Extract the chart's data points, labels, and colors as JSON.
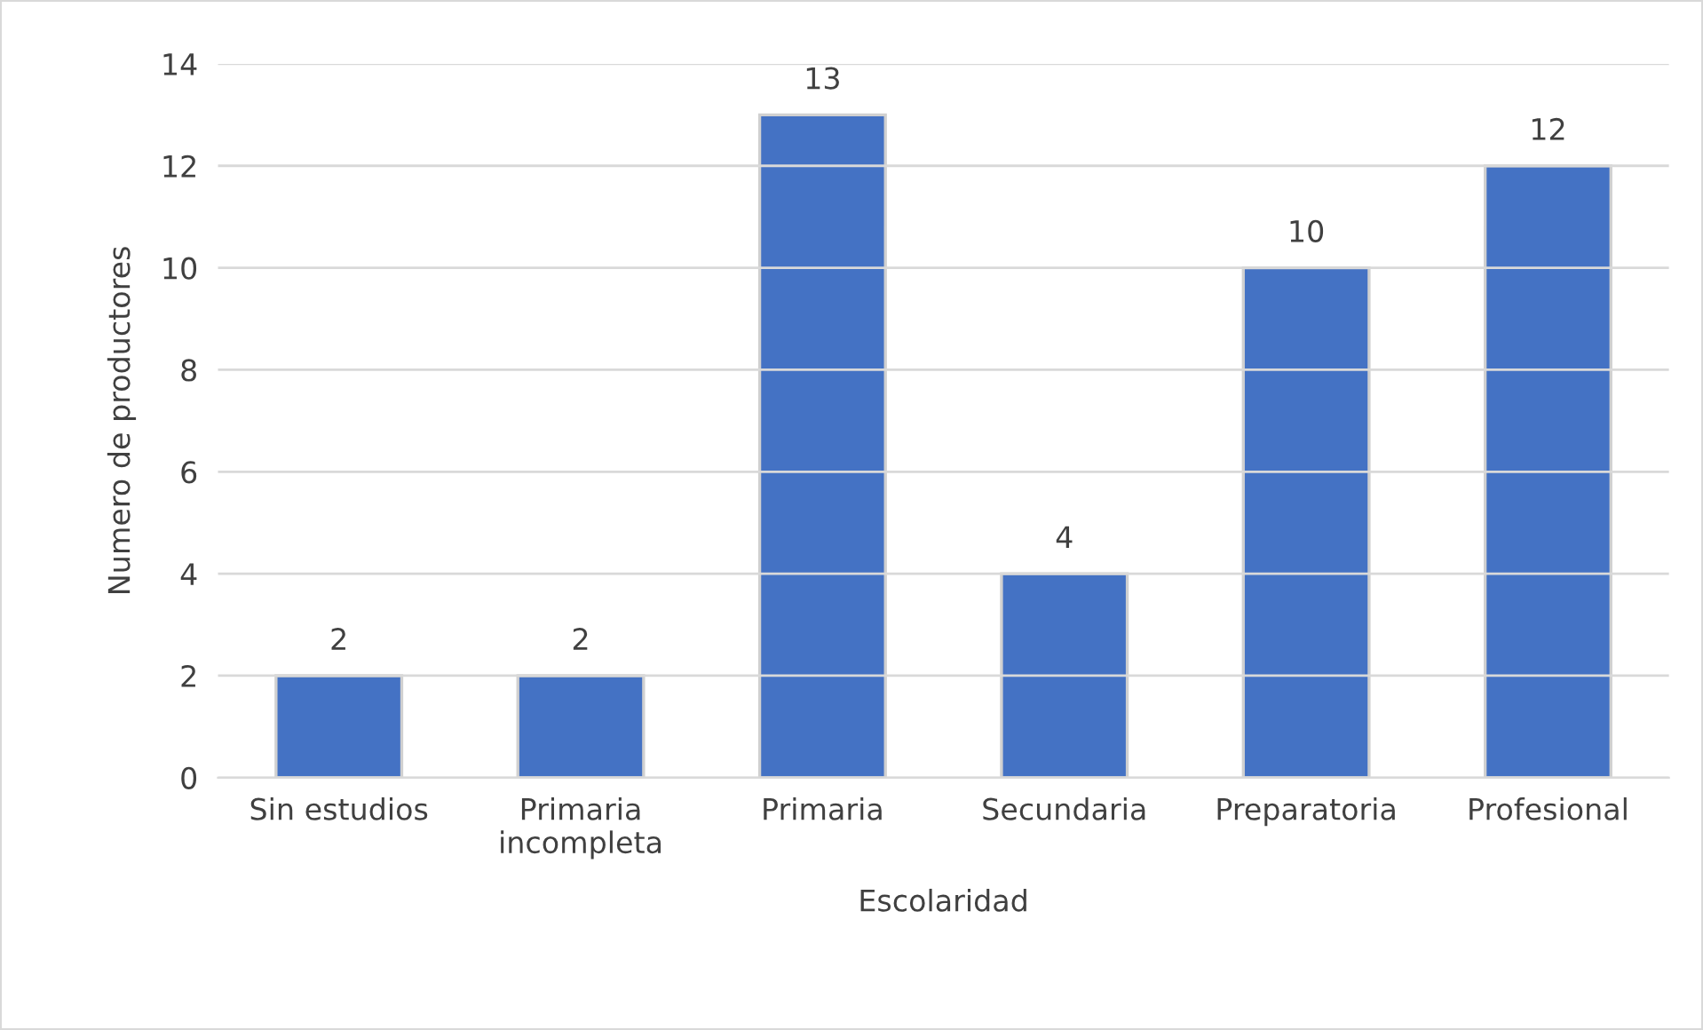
{
  "chart_data": {
    "type": "bar",
    "xlabel": "Escolaridad",
    "ylabel": "Numero de productores",
    "categories": [
      "Sin estudios",
      "Primaria\nincompleta",
      "Primaria",
      "Secundaria",
      "Preparatoria",
      "Profesional"
    ],
    "values": [
      2,
      2,
      13,
      4,
      10,
      12
    ],
    "color": "#4472c4",
    "ylim": [
      0,
      14
    ],
    "yticks": [
      0,
      2,
      4,
      6,
      8,
      10,
      12,
      14
    ],
    "grid": "y",
    "data_labels": true,
    "legend": false
  }
}
